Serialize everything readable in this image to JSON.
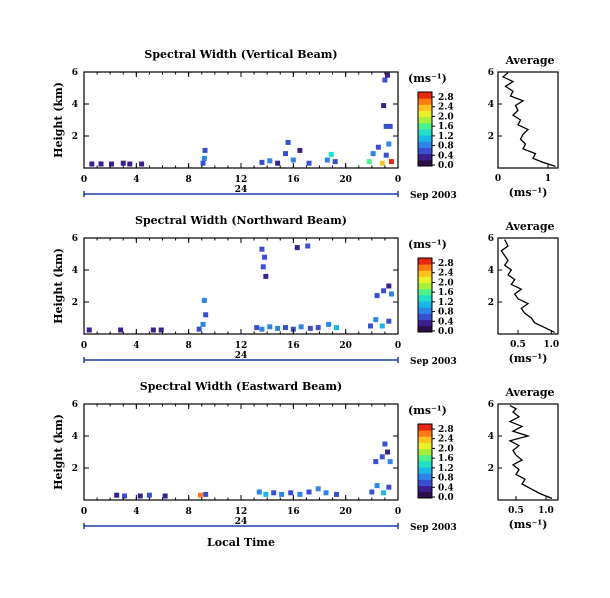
{
  "colors": {
    "colormap": [
      "#2a0f4a",
      "#3b1f8c",
      "#3a4fd0",
      "#2b86e8",
      "#1ab8e8",
      "#22e0c8",
      "#4df28a",
      "#a6f03c",
      "#eaf02a",
      "#ffc21f",
      "#ff7a12",
      "#e8280e"
    ],
    "line": "#000000",
    "timebar": "#1c3ca8"
  },
  "chart_data": [
    {
      "type": "heatmap",
      "title": "Spectral Width (Vertical Beam)",
      "ylabel": "Height (km)",
      "xlim": [
        0,
        24
      ],
      "ylim": [
        0,
        6
      ],
      "x_ticks": [
        "0",
        "4",
        "8",
        "12",
        "16",
        "20",
        "0"
      ],
      "y_ticks": [
        "2",
        "4",
        "6"
      ],
      "date_marker": "24",
      "date_label": "Sep 2003",
      "colorbar": {
        "unit": "(ms⁻¹)",
        "ticks": [
          "0.0",
          "0.4",
          "0.8",
          "1.2",
          "1.6",
          "2.0",
          "2.4",
          "2.8"
        ]
      },
      "cells": [
        {
          "t": 0.6,
          "h": 0.25,
          "v": 0.3
        },
        {
          "t": 1.3,
          "h": 0.25,
          "v": 0.35
        },
        {
          "t": 2.1,
          "h": 0.25,
          "v": 0.3
        },
        {
          "t": 3.0,
          "h": 0.3,
          "v": 0.4
        },
        {
          "t": 3.5,
          "h": 0.25,
          "v": 0.3
        },
        {
          "t": 4.4,
          "h": 0.25,
          "v": 0.35
        },
        {
          "t": 9.1,
          "h": 0.3,
          "v": 0.5
        },
        {
          "t": 9.2,
          "h": 0.6,
          "v": 0.8
        },
        {
          "t": 9.25,
          "h": 1.1,
          "v": 0.6
        },
        {
          "t": 13.6,
          "h": 0.35,
          "v": 0.5
        },
        {
          "t": 14.2,
          "h": 0.45,
          "v": 0.7
        },
        {
          "t": 14.8,
          "h": 0.3,
          "v": 0.4
        },
        {
          "t": 15.4,
          "h": 0.9,
          "v": 0.6
        },
        {
          "t": 15.6,
          "h": 1.6,
          "v": 0.5
        },
        {
          "t": 16.0,
          "h": 0.5,
          "v": 0.8
        },
        {
          "t": 16.5,
          "h": 1.1,
          "v": 0.4
        },
        {
          "t": 17.2,
          "h": 0.3,
          "v": 0.5
        },
        {
          "t": 18.6,
          "h": 0.5,
          "v": 0.9
        },
        {
          "t": 18.9,
          "h": 0.85,
          "v": 1.3
        },
        {
          "t": 19.2,
          "h": 0.4,
          "v": 0.6
        },
        {
          "t": 21.8,
          "h": 0.4,
          "v": 1.4
        },
        {
          "t": 22.1,
          "h": 0.9,
          "v": 0.8
        },
        {
          "t": 22.5,
          "h": 1.3,
          "v": 0.6
        },
        {
          "t": 22.8,
          "h": 0.3,
          "v": 2.2
        },
        {
          "t": 23.1,
          "h": 0.8,
          "v": 0.5
        },
        {
          "t": 23.3,
          "h": 1.5,
          "v": 0.7
        },
        {
          "t": 23.5,
          "h": 0.4,
          "v": 2.6
        },
        {
          "t": 23.1,
          "h": 2.6,
          "v": 0.5
        },
        {
          "t": 23.4,
          "h": 2.6,
          "v": 0.6
        },
        {
          "t": 22.9,
          "h": 3.9,
          "v": 0.4
        },
        {
          "t": 23.0,
          "h": 5.5,
          "v": 0.5
        },
        {
          "t": 23.2,
          "h": 5.8,
          "v": 0.4
        }
      ]
    },
    {
      "type": "line",
      "title": "Average",
      "xlabel": "(ms⁻¹)",
      "xlim": [
        0,
        1.2
      ],
      "ylim": [
        0,
        6
      ],
      "x_ticks": [
        "0",
        "1"
      ],
      "y_ticks": [
        "2",
        "4",
        "6"
      ],
      "x": [
        1.15,
        0.9,
        0.7,
        0.75,
        0.5,
        0.55,
        0.45,
        0.5,
        0.6,
        0.4,
        0.45,
        0.3,
        0.4,
        0.35,
        0.5,
        0.25,
        0.3,
        0.15,
        0.3,
        0.1,
        0.2
      ],
      "y": [
        0.1,
        0.35,
        0.6,
        0.9,
        1.2,
        1.5,
        1.8,
        2.1,
        2.4,
        2.7,
        3.0,
        3.3,
        3.6,
        3.9,
        4.2,
        4.5,
        4.8,
        5.1,
        5.4,
        5.7,
        5.95
      ]
    },
    {
      "type": "heatmap",
      "title": "Spectral Width (Northward Beam)",
      "ylabel": "Height (km)",
      "xlim": [
        0,
        24
      ],
      "ylim": [
        0,
        6
      ],
      "x_ticks": [
        "0",
        "4",
        "8",
        "12",
        "16",
        "20",
        "0"
      ],
      "y_ticks": [
        "2",
        "4",
        "6"
      ],
      "date_marker": "24",
      "date_label": "Sep 2003",
      "colorbar": {
        "unit": "(ms⁻¹)",
        "ticks": [
          "0.0",
          "0.4",
          "0.8",
          "1.2",
          "1.6",
          "2.0",
          "2.4",
          "2.8"
        ]
      },
      "cells": [
        {
          "t": 0.4,
          "h": 0.25,
          "v": 0.3
        },
        {
          "t": 2.8,
          "h": 0.25,
          "v": 0.35
        },
        {
          "t": 5.3,
          "h": 0.25,
          "v": 0.3
        },
        {
          "t": 5.9,
          "h": 0.25,
          "v": 0.4
        },
        {
          "t": 8.8,
          "h": 0.3,
          "v": 0.5
        },
        {
          "t": 9.1,
          "h": 0.6,
          "v": 0.7
        },
        {
          "t": 9.3,
          "h": 1.2,
          "v": 0.6
        },
        {
          "t": 9.2,
          "h": 2.1,
          "v": 0.8
        },
        {
          "t": 13.2,
          "h": 0.4,
          "v": 0.6
        },
        {
          "t": 13.6,
          "h": 0.3,
          "v": 0.9
        },
        {
          "t": 14.2,
          "h": 0.45,
          "v": 0.7
        },
        {
          "t": 14.8,
          "h": 0.35,
          "v": 0.8
        },
        {
          "t": 15.4,
          "h": 0.4,
          "v": 0.6
        },
        {
          "t": 16.0,
          "h": 0.3,
          "v": 0.5
        },
        {
          "t": 16.6,
          "h": 0.45,
          "v": 0.7
        },
        {
          "t": 17.3,
          "h": 0.35,
          "v": 0.6
        },
        {
          "t": 17.9,
          "h": 0.4,
          "v": 0.5
        },
        {
          "t": 18.7,
          "h": 0.6,
          "v": 0.8
        },
        {
          "t": 19.3,
          "h": 0.4,
          "v": 1.0
        },
        {
          "t": 13.6,
          "h": 5.3,
          "v": 0.5
        },
        {
          "t": 13.8,
          "h": 4.8,
          "v": 0.6
        },
        {
          "t": 13.7,
          "h": 4.2,
          "v": 0.5
        },
        {
          "t": 13.9,
          "h": 3.6,
          "v": 0.4
        },
        {
          "t": 16.3,
          "h": 5.4,
          "v": 0.4
        },
        {
          "t": 17.1,
          "h": 5.5,
          "v": 0.5
        },
        {
          "t": 21.9,
          "h": 0.5,
          "v": 0.6
        },
        {
          "t": 22.3,
          "h": 0.9,
          "v": 0.8
        },
        {
          "t": 22.8,
          "h": 0.5,
          "v": 1.0
        },
        {
          "t": 23.3,
          "h": 0.8,
          "v": 0.6
        },
        {
          "t": 22.4,
          "h": 2.4,
          "v": 0.5
        },
        {
          "t": 22.9,
          "h": 2.7,
          "v": 0.6
        },
        {
          "t": 23.3,
          "h": 3.0,
          "v": 0.4
        },
        {
          "t": 23.5,
          "h": 2.5,
          "v": 0.7
        }
      ]
    },
    {
      "type": "line",
      "title": "Average",
      "xlabel": "(ms⁻¹)",
      "xlim": [
        0.2,
        1.1
      ],
      "ylim": [
        0,
        6
      ],
      "x_ticks": [
        "0.5",
        "1.0"
      ],
      "y_ticks": [
        "2",
        "4",
        "6"
      ],
      "x": [
        1.05,
        0.9,
        0.75,
        0.7,
        0.6,
        0.55,
        0.65,
        0.5,
        0.45,
        0.55,
        0.4,
        0.45,
        0.35,
        0.4,
        0.3,
        0.35,
        0.3,
        0.25,
        0.35,
        0.3
      ],
      "y": [
        0.1,
        0.4,
        0.7,
        1.0,
        1.3,
        1.6,
        1.9,
        2.2,
        2.5,
        2.8,
        3.1,
        3.4,
        3.7,
        4.0,
        4.3,
        4.6,
        4.9,
        5.2,
        5.5,
        5.9
      ]
    },
    {
      "type": "heatmap",
      "title": "Spectral Width (Eastward Beam)",
      "ylabel": "Height (km)",
      "xlabel": "Local Time",
      "xlim": [
        0,
        24
      ],
      "ylim": [
        0,
        6
      ],
      "x_ticks": [
        "0",
        "4",
        "8",
        "12",
        "16",
        "20",
        "0"
      ],
      "y_ticks": [
        "2",
        "4",
        "6"
      ],
      "date_marker": "24",
      "date_label": "Sep 2003",
      "colorbar": {
        "unit": "(ms⁻¹)",
        "ticks": [
          "0.0",
          "0.4",
          "0.8",
          "1.2",
          "1.6",
          "2.0",
          "2.4",
          "2.8"
        ]
      },
      "cells": [
        {
          "t": 2.5,
          "h": 0.3,
          "v": 0.4
        },
        {
          "t": 3.1,
          "h": 0.25,
          "v": 0.5
        },
        {
          "t": 4.3,
          "h": 0.25,
          "v": 0.4
        },
        {
          "t": 5.0,
          "h": 0.3,
          "v": 0.6
        },
        {
          "t": 6.2,
          "h": 0.25,
          "v": 0.4
        },
        {
          "t": 8.9,
          "h": 0.3,
          "v": 2.4
        },
        {
          "t": 9.3,
          "h": 0.35,
          "v": 0.6
        },
        {
          "t": 13.4,
          "h": 0.5,
          "v": 0.7
        },
        {
          "t": 13.9,
          "h": 0.35,
          "v": 1.0
        },
        {
          "t": 14.5,
          "h": 0.45,
          "v": 0.6
        },
        {
          "t": 15.1,
          "h": 0.35,
          "v": 0.8
        },
        {
          "t": 15.8,
          "h": 0.45,
          "v": 0.6
        },
        {
          "t": 16.5,
          "h": 0.35,
          "v": 0.7
        },
        {
          "t": 17.2,
          "h": 0.5,
          "v": 0.5
        },
        {
          "t": 17.9,
          "h": 0.7,
          "v": 0.9
        },
        {
          "t": 18.5,
          "h": 0.45,
          "v": 0.7
        },
        {
          "t": 19.3,
          "h": 0.35,
          "v": 0.6
        },
        {
          "t": 22.0,
          "h": 0.5,
          "v": 0.6
        },
        {
          "t": 22.4,
          "h": 0.9,
          "v": 0.8
        },
        {
          "t": 22.9,
          "h": 0.45,
          "v": 1.0
        },
        {
          "t": 23.3,
          "h": 0.8,
          "v": 0.6
        },
        {
          "t": 22.3,
          "h": 2.4,
          "v": 0.5
        },
        {
          "t": 22.8,
          "h": 2.7,
          "v": 0.6
        },
        {
          "t": 23.2,
          "h": 3.0,
          "v": 0.4
        },
        {
          "t": 23.4,
          "h": 2.4,
          "v": 0.7
        },
        {
          "t": 23.0,
          "h": 3.5,
          "v": 0.5
        }
      ]
    },
    {
      "type": "line",
      "title": "Average",
      "xlabel": "(ms⁻¹)",
      "xlim": [
        0.2,
        1.2
      ],
      "ylim": [
        0,
        6
      ],
      "x_ticks": [
        "0.5",
        "1.0"
      ],
      "y_ticks": [
        "2",
        "4",
        "6"
      ],
      "x": [
        1.1,
        0.9,
        0.75,
        0.6,
        0.65,
        0.5,
        0.55,
        0.45,
        0.6,
        0.5,
        0.45,
        0.55,
        0.4,
        0.7,
        0.45,
        0.6,
        0.4,
        0.55,
        0.45,
        0.5,
        0.4
      ],
      "y": [
        0.1,
        0.4,
        0.7,
        1.0,
        1.3,
        1.6,
        1.9,
        2.2,
        2.5,
        2.8,
        3.1,
        3.4,
        3.7,
        4.0,
        4.3,
        4.6,
        4.9,
        5.2,
        5.5,
        5.7,
        5.9
      ]
    }
  ]
}
